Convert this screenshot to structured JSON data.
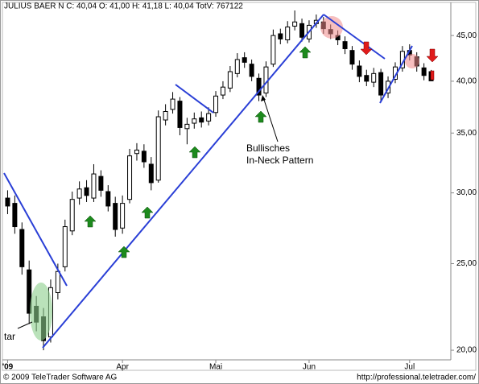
{
  "chart_data": {
    "type": "candlestick",
    "title": "JULIUS BAER N C: 40,04 O: 41,00 H: 41,18 L: 40,04 TotV: 767122",
    "categories": [
      "'09",
      null,
      null,
      null,
      null,
      null,
      null,
      null,
      null,
      null,
      null,
      null,
      null,
      null,
      null,
      null,
      "Apr",
      null,
      null,
      null,
      null,
      null,
      null,
      null,
      null,
      null,
      null,
      null,
      null,
      "Mai",
      null,
      null,
      null,
      null,
      null,
      null,
      null,
      null,
      null,
      null,
      null,
      null,
      "Jun",
      null,
      null,
      null,
      null,
      null,
      null,
      null,
      null,
      null,
      null,
      null,
      null,
      null,
      "Jul",
      null,
      null,
      null
    ],
    "open": [
      29.6,
      29.2,
      27.3,
      24.6,
      22.4,
      21.8,
      20.7,
      23.2,
      24.8,
      27.2,
      29.6,
      30.4,
      29.6,
      31.3,
      30.1,
      29.2,
      27.4,
      29.5,
      33.2,
      33.4,
      32.3,
      31.0,
      36.2,
      37.2,
      38.0,
      35.4,
      35.9,
      36.4,
      36.1,
      36.9,
      38.6,
      39.3,
      40.8,
      42.5,
      41.8,
      40.3,
      38.8,
      41.8,
      45.2,
      44.5,
      46.1,
      46.4,
      44.6,
      46.4,
      46.6,
      45.7,
      45.0,
      44.3,
      43.3,
      41.6,
      40.6,
      39.9,
      40.9,
      38.8,
      40.2,
      41.4,
      43.3,
      42.6,
      41.4,
      41.0
    ],
    "high": [
      30.2,
      29.8,
      27.8,
      25.2,
      23.0,
      22.3,
      24.0,
      25.0,
      28.0,
      30.1,
      30.9,
      31.0,
      32.3,
      31.8,
      30.6,
      29.7,
      29.8,
      33.6,
      34.1,
      34.0,
      32.9,
      37.1,
      37.7,
      38.9,
      38.4,
      36.4,
      36.9,
      37.0,
      37.4,
      39.0,
      40.0,
      41.6,
      43.0,
      43.1,
      42.3,
      40.8,
      42.1,
      45.7,
      45.8,
      46.7,
      48.0,
      47.0,
      46.8,
      47.5,
      47.2,
      46.3,
      45.6,
      44.9,
      43.8,
      42.2,
      41.2,
      41.4,
      41.3,
      40.5,
      42.0,
      43.8,
      44.0,
      43.1,
      41.9,
      41.18
    ],
    "low": [
      28.4,
      27.0,
      24.3,
      21.4,
      21.0,
      20.0,
      20.4,
      22.8,
      24.5,
      26.9,
      29.1,
      29.3,
      29.3,
      29.7,
      28.6,
      26.8,
      27.0,
      29.2,
      32.6,
      32.0,
      30.2,
      30.8,
      35.7,
      36.8,
      34.8,
      34.0,
      35.4,
      35.5,
      35.7,
      36.5,
      38.2,
      38.9,
      40.4,
      41.4,
      40.0,
      38.0,
      38.4,
      41.5,
      44.0,
      44.1,
      45.6,
      44.3,
      44.2,
      45.9,
      45.2,
      44.6,
      43.9,
      42.9,
      41.2,
      39.9,
      39.5,
      39.4,
      38.0,
      38.3,
      39.8,
      41.0,
      42.2,
      41.0,
      40.1,
      40.04
    ],
    "close": [
      29.0,
      27.5,
      24.8,
      22.0,
      21.5,
      20.5,
      23.5,
      24.5,
      27.5,
      29.5,
      30.3,
      29.8,
      31.5,
      30.2,
      29.0,
      27.3,
      29.2,
      33.0,
      33.5,
      32.5,
      30.8,
      36.5,
      37.0,
      38.2,
      35.5,
      35.8,
      36.3,
      36.0,
      36.8,
      38.5,
      39.4,
      41.0,
      42.3,
      42.0,
      40.5,
      38.6,
      41.5,
      45.0,
      44.6,
      46.0,
      46.6,
      44.8,
      46.2,
      46.8,
      45.8,
      45.2,
      44.5,
      43.5,
      41.8,
      40.5,
      40.0,
      40.8,
      38.6,
      40.0,
      41.5,
      43.2,
      42.8,
      41.6,
      40.6,
      40.04
    ],
    "colors": {
      "up": "#ffffff",
      "down": "#000000"
    },
    "log_scale": true,
    "grid": false,
    "ylim": [
      19.47,
      48.3
    ],
    "yticks": [
      {
        "value": 20,
        "label": "20,00"
      },
      {
        "value": 25,
        "label": "25,00"
      },
      {
        "value": 30,
        "label": "30,00"
      },
      {
        "value": 35,
        "label": "35,00"
      },
      {
        "value": 40,
        "label": "40,00"
      },
      {
        "value": 45,
        "label": "45,00"
      }
    ],
    "annotations": [
      "Bullisches",
      "In-Neck Pattern",
      "tar"
    ]
  },
  "footer": {
    "left": "© 2009 TeleTrader Software AG",
    "right": "http://professional.teletrader.com/"
  }
}
